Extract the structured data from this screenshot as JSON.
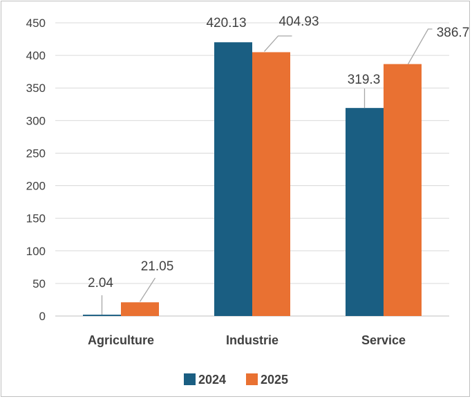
{
  "chart_data": {
    "type": "bar",
    "categories": [
      "Agriculture",
      "Industrie",
      "Service"
    ],
    "series": [
      {
        "name": "2024",
        "color": "#1a5e82",
        "values": [
          2.04,
          420.13,
          319.3
        ]
      },
      {
        "name": "2025",
        "color": "#e97132",
        "values": [
          21.05,
          404.93,
          386.7
        ]
      }
    ],
    "data_labels": [
      [
        "2.04",
        "420.13",
        "319.3"
      ],
      [
        "21.05",
        "404.93",
        "386.7"
      ]
    ],
    "ylim": [
      0,
      450
    ],
    "yticks": [
      0,
      50,
      100,
      150,
      200,
      250,
      300,
      350,
      400,
      450
    ],
    "grid": true,
    "legend_position": "bottom",
    "title": "",
    "xlabel": "",
    "ylabel": ""
  }
}
